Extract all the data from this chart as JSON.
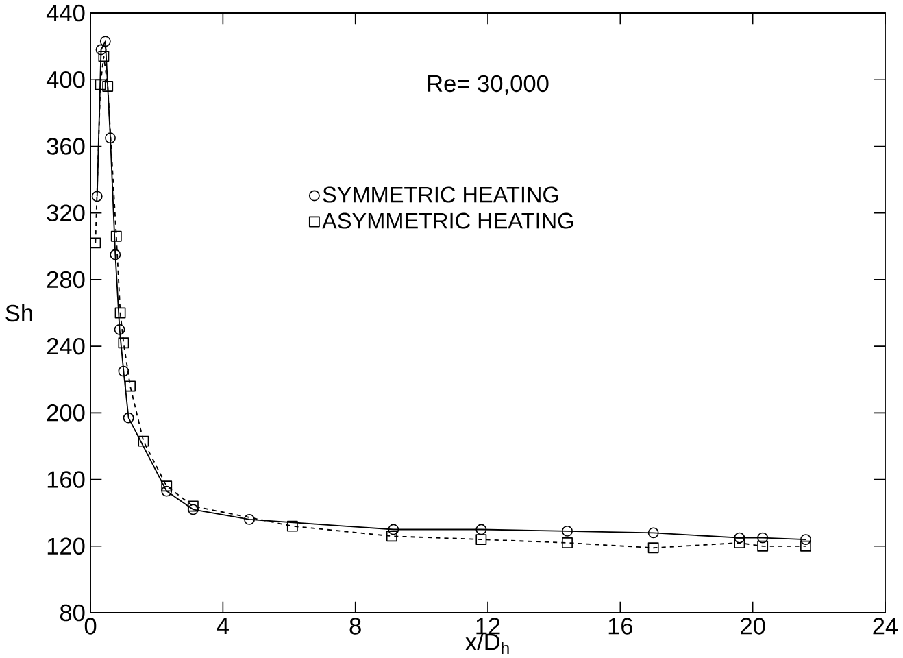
{
  "chart_data": {
    "type": "line",
    "xlabel": "x/D$_{h}$",
    "ylabel": "Sh",
    "annotations": [
      "Re= 30,000"
    ],
    "xlim": [
      0,
      24
    ],
    "ylim": [
      80,
      440
    ],
    "xticks": [
      0,
      4,
      8,
      12,
      16,
      20,
      24
    ],
    "yticks": [
      80,
      120,
      160,
      200,
      240,
      280,
      320,
      360,
      400,
      440
    ],
    "grid": false,
    "legend": "top",
    "series": [
      {
        "name": "SYMMETRIC HEATING",
        "color": "#000000",
        "marker": "circle",
        "line_style": "solid",
        "x": [
          0.2,
          0.32,
          0.45,
          0.6,
          0.75,
          0.88,
          1.0,
          1.15,
          2.3,
          3.1,
          4.8,
          9.15,
          11.8,
          14.4,
          17.0,
          19.6,
          20.3,
          21.6
        ],
        "values": [
          330,
          418,
          423,
          365,
          295,
          250,
          225,
          197,
          153,
          142,
          136,
          130,
          130,
          129,
          128,
          125,
          125,
          124
        ]
      },
      {
        "name": "ASYMMETRIC HEATING",
        "color": "#000000",
        "marker": "square",
        "line_style": "dashed",
        "x": [
          0.15,
          0.3,
          0.4,
          0.52,
          0.78,
          0.9,
          1.0,
          1.2,
          1.6,
          2.3,
          3.1,
          6.1,
          9.1,
          11.8,
          14.4,
          17.0,
          19.6,
          20.3,
          21.6
        ],
        "values": [
          302,
          397,
          414,
          396,
          306,
          260,
          242,
          216,
          183,
          156,
          144,
          132,
          126,
          124,
          122,
          119,
          122,
          120,
          120
        ]
      }
    ]
  }
}
